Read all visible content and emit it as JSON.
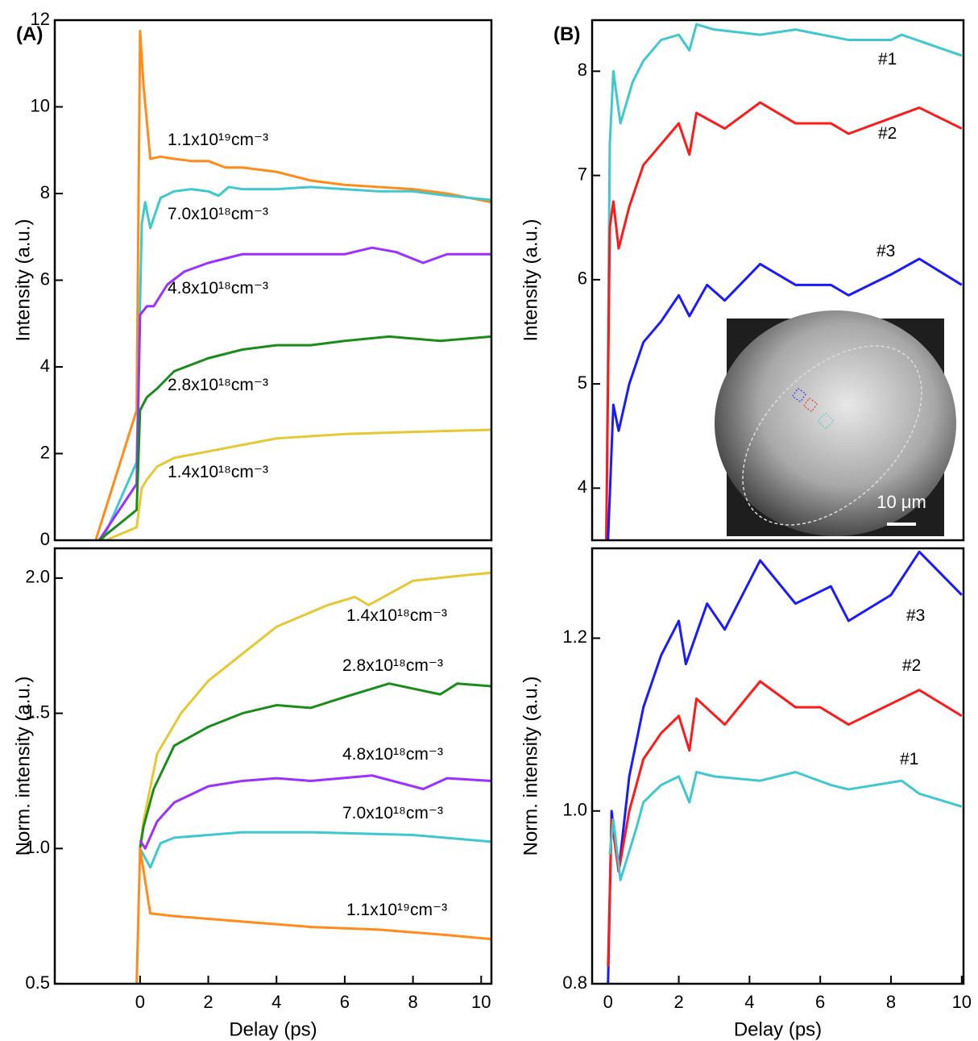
{
  "chart_data": [
    {
      "type": "line",
      "panel_label": "(A)",
      "y_label": "Intensity (a.u.)",
      "xlim": [
        -2.5,
        10.3
      ],
      "ylim": [
        0,
        12
      ],
      "yticks": [
        0,
        2,
        4,
        6,
        8,
        10,
        12
      ],
      "series": [
        {
          "name": "1.1x10¹⁹cm⁻³",
          "color": "#ff8c1a",
          "x": [
            -1.3,
            -0.1,
            0,
            0.1,
            0.3,
            0.6,
            1,
            1.5,
            2,
            2.5,
            3,
            4,
            5,
            6,
            7,
            8,
            9,
            10.3
          ],
          "values": [
            0,
            3,
            11.75,
            10.5,
            8.8,
            8.85,
            8.8,
            8.75,
            8.75,
            8.6,
            8.6,
            8.5,
            8.3,
            8.2,
            8.15,
            8.1,
            8.0,
            7.8
          ]
        },
        {
          "name": "7.0x10¹⁸cm⁻³",
          "color": "#3fc8d0",
          "x": [
            -1.1,
            -0.1,
            0.05,
            0.15,
            0.3,
            0.6,
            1,
            1.5,
            2,
            2.3,
            2.6,
            3,
            4,
            5,
            6,
            7,
            8,
            9,
            10.3
          ],
          "values": [
            0,
            1.8,
            7.3,
            7.8,
            7.2,
            7.9,
            8.05,
            8.1,
            8.05,
            7.95,
            8.15,
            8.1,
            8.1,
            8.15,
            8.1,
            8.05,
            8.05,
            7.95,
            7.85
          ]
        },
        {
          "name": "4.8x10¹⁸cm⁻³",
          "color": "#9b30ff",
          "x": [
            -1.2,
            -0.1,
            0,
            0.2,
            0.4,
            0.8,
            1.3,
            2,
            3,
            4,
            5,
            6,
            6.8,
            7.5,
            8.3,
            9,
            10.3
          ],
          "values": [
            0,
            1.3,
            5.2,
            5.4,
            5.4,
            5.9,
            6.2,
            6.4,
            6.6,
            6.6,
            6.6,
            6.6,
            6.75,
            6.65,
            6.4,
            6.6,
            6.6
          ]
        },
        {
          "name": "2.8x10¹⁸cm⁻³",
          "color": "#1a8c1a",
          "x": [
            -1.2,
            -0.1,
            0,
            0.2,
            0.5,
            1,
            2,
            3,
            4,
            5,
            6,
            7.3,
            8.8,
            10.3
          ],
          "values": [
            0,
            0.7,
            3.0,
            3.3,
            3.5,
            3.9,
            4.2,
            4.4,
            4.5,
            4.5,
            4.6,
            4.7,
            4.6,
            4.7
          ]
        },
        {
          "name": "1.4x10¹⁸cm⁻³",
          "color": "#e6c832",
          "x": [
            -1.0,
            -0.1,
            0.05,
            0.2,
            0.5,
            1,
            2,
            3,
            4,
            6,
            8,
            10.3
          ],
          "values": [
            0,
            0.3,
            1.2,
            1.4,
            1.7,
            1.9,
            2.05,
            2.2,
            2.35,
            2.45,
            2.5,
            2.55
          ]
        }
      ]
    },
    {
      "type": "line",
      "panel_label": "(B)",
      "y_label": "Intensity (a.u.)",
      "inset_label": "10 μm",
      "xlim": [
        -0.45,
        10.05
      ],
      "ylim": [
        3.5,
        8.49
      ],
      "yticks": [
        4,
        5,
        6,
        7,
        8
      ],
      "series": [
        {
          "name": "#1",
          "color": "#3fc8d0",
          "x": [
            -0.05,
            0.05,
            0.15,
            0.35,
            0.7,
            1,
            1.5,
            2,
            2.3,
            2.5,
            3,
            4.3,
            5.3,
            6.8,
            8,
            8.3,
            10
          ],
          "values": [
            3.5,
            7.3,
            8.0,
            7.5,
            7.9,
            8.1,
            8.3,
            8.35,
            8.2,
            8.45,
            8.4,
            8.35,
            8.4,
            8.3,
            8.3,
            8.35,
            8.15
          ]
        },
        {
          "name": "#2",
          "color": "#ff1a1a",
          "x": [
            -0.05,
            0.05,
            0.15,
            0.3,
            0.6,
            1,
            1.5,
            2,
            2.3,
            2.5,
            3.3,
            4.3,
            5.3,
            6.3,
            6.8,
            8.8,
            10
          ],
          "values": [
            3.5,
            6.5,
            6.75,
            6.3,
            6.7,
            7.1,
            7.3,
            7.5,
            7.2,
            7.6,
            7.45,
            7.7,
            7.5,
            7.5,
            7.4,
            7.65,
            7.45
          ]
        },
        {
          "name": "#3",
          "color": "#1a1aff",
          "x": [
            0,
            0.15,
            0.3,
            0.6,
            1,
            1.5,
            2,
            2.3,
            2.8,
            3.3,
            4.3,
            5.3,
            6.3,
            6.8,
            8,
            8.8,
            10
          ],
          "values": [
            3.5,
            4.8,
            4.55,
            5.0,
            5.4,
            5.6,
            5.85,
            5.65,
            5.95,
            5.8,
            6.15,
            5.95,
            5.95,
            5.85,
            6.05,
            6.2,
            5.95
          ]
        }
      ]
    },
    {
      "type": "line",
      "y_label": "Norm. intensity (a.u.)",
      "x_label": "Delay (ps)",
      "xlim": [
        -2.5,
        10.3
      ],
      "ylim": [
        0.5,
        2.11
      ],
      "xticks": [
        0,
        2,
        4,
        6,
        8,
        10
      ],
      "yticks": [
        0.5,
        {
          "value": 1,
          "label": "1.0"
        },
        1.5,
        {
          "value": 2,
          "label": "2.0"
        }
      ],
      "series": [
        {
          "name": "1.4x10¹⁸cm⁻³",
          "color": "#e6c832",
          "x": [
            0,
            0.1,
            0.5,
            1.2,
            2,
            3,
            4,
            5.5,
            6.3,
            6.7,
            8,
            9.5,
            10.3
          ],
          "values": [
            1.0,
            1.1,
            1.35,
            1.5,
            1.62,
            1.72,
            1.82,
            1.9,
            1.93,
            1.9,
            1.99,
            2.01,
            2.02
          ]
        },
        {
          "name": "2.8x10¹⁸cm⁻³",
          "color": "#1a8c1a",
          "x": [
            0,
            0.1,
            0.4,
            1,
            2,
            3,
            4,
            5,
            6,
            7.3,
            8.8,
            9.3,
            10.3
          ],
          "values": [
            1.0,
            1.08,
            1.22,
            1.38,
            1.45,
            1.5,
            1.53,
            1.52,
            1.56,
            1.61,
            1.57,
            1.61,
            1.6
          ]
        },
        {
          "name": "4.8x10¹⁸cm⁻³",
          "color": "#9b30ff",
          "x": [
            0,
            0.15,
            0.5,
            1,
            2,
            3,
            4,
            5,
            6.8,
            8.3,
            9,
            10.3
          ],
          "values": [
            1.03,
            1.0,
            1.1,
            1.17,
            1.23,
            1.25,
            1.26,
            1.25,
            1.27,
            1.22,
            1.26,
            1.25
          ]
        },
        {
          "name": "7.0x10¹⁸cm⁻³",
          "color": "#3fc8d0",
          "x": [
            0,
            0.3,
            0.6,
            1,
            2,
            3,
            5,
            8,
            10.3
          ],
          "values": [
            1.0,
            0.93,
            1.02,
            1.04,
            1.05,
            1.06,
            1.06,
            1.05,
            1.025
          ]
        },
        {
          "name": "1.1x10¹⁹cm⁻³",
          "color": "#ff8c1a",
          "x": [
            -0.1,
            0,
            0.3,
            1,
            2,
            3,
            5,
            7,
            9,
            10.3
          ],
          "values": [
            0.5,
            1.0,
            0.76,
            0.75,
            0.74,
            0.73,
            0.71,
            0.7,
            0.68,
            0.665
          ]
        }
      ]
    },
    {
      "type": "line",
      "y_label": "Norm. intensity (a.u.)",
      "x_label": "Delay (ps)",
      "xlim": [
        -0.45,
        10.05
      ],
      "ylim": [
        0.8,
        1.304
      ],
      "xticks": [
        0,
        2,
        4,
        6,
        8,
        10
      ],
      "yticks": [
        0.8,
        {
          "value": 1,
          "label": "1.0"
        },
        1.2
      ],
      "series": [
        {
          "name": "#3",
          "color": "#1a1aff",
          "x": [
            0,
            0.1,
            0.3,
            0.6,
            1,
            1.5,
            2,
            2.2,
            2.8,
            3.3,
            4.3,
            5.3,
            6.3,
            6.8,
            8,
            8.8,
            10
          ],
          "values": [
            0.8,
            1.0,
            0.93,
            1.04,
            1.12,
            1.18,
            1.22,
            1.17,
            1.24,
            1.21,
            1.29,
            1.24,
            1.26,
            1.22,
            1.25,
            1.3,
            1.25
          ]
        },
        {
          "name": "#2",
          "color": "#ff1a1a",
          "x": [
            0,
            0.1,
            0.3,
            0.6,
            1,
            1.5,
            2,
            2.3,
            2.5,
            3.3,
            4.3,
            5.3,
            6,
            6.8,
            8.8,
            10
          ],
          "values": [
            0.82,
            0.99,
            0.93,
            1.0,
            1.06,
            1.09,
            1.11,
            1.07,
            1.13,
            1.1,
            1.15,
            1.12,
            1.12,
            1.1,
            1.14,
            1.11
          ]
        },
        {
          "name": "#1",
          "color": "#3fc8d0",
          "x": [
            0.05,
            0.15,
            0.35,
            0.8,
            1,
            1.5,
            2,
            2.3,
            2.5,
            3,
            4.3,
            5.3,
            6.3,
            6.8,
            8.3,
            8.8,
            10
          ],
          "values": [
            0.95,
            0.99,
            0.92,
            0.98,
            1.01,
            1.03,
            1.04,
            1.01,
            1.045,
            1.04,
            1.035,
            1.045,
            1.03,
            1.025,
            1.035,
            1.02,
            1.005
          ]
        }
      ]
    }
  ]
}
